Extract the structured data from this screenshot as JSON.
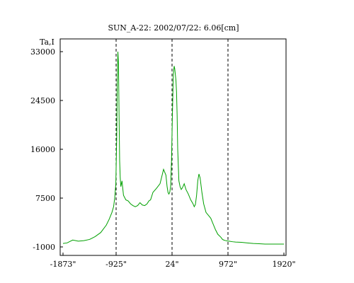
{
  "chart_data": {
    "type": "line",
    "title": "SUN_A-22: 2002/07/22: 6.06[cm]",
    "ylabel": "Ta,I",
    "xlabel": "",
    "xlim": [
      -1873,
      1920
    ],
    "ylim": [
      -1000,
      36000
    ],
    "x_ticks": [
      {
        "value": -1873,
        "label": "-1873\""
      },
      {
        "value": -925,
        "label": "-925\""
      },
      {
        "value": 24,
        "label": "24\""
      },
      {
        "value": 972,
        "label": "972\""
      },
      {
        "value": 1920,
        "label": "1920\""
      }
    ],
    "y_ticks": [
      {
        "value": -1000,
        "label": "-1000"
      },
      {
        "value": 7500,
        "label": "7500"
      },
      {
        "value": 16000,
        "label": "16000"
      },
      {
        "value": 24500,
        "label": "24500"
      },
      {
        "value": 33000,
        "label": "33000"
      }
    ],
    "vertical_dashed_lines_x": [
      -925,
      24,
      972
    ],
    "grid": false,
    "series": [
      {
        "color": "#00a000",
        "x": [
          -1873,
          -1800,
          -1700,
          -1600,
          -1500,
          -1400,
          -1300,
          -1200,
          -1100,
          -1050,
          -1000,
          -970,
          -950,
          -930,
          -915,
          -905,
          -895,
          -885,
          -875,
          -865,
          -855,
          -845,
          -835,
          -825,
          -800,
          -760,
          -720,
          -680,
          -640,
          -600,
          -560,
          -520,
          -480,
          -440,
          -400,
          -370,
          -340,
          -300,
          -240,
          -180,
          -120,
          -80,
          -60,
          -45,
          -30,
          -15,
          0,
          15,
          30,
          45,
          60,
          70,
          80,
          90,
          100,
          110,
          120,
          140,
          160,
          180,
          200,
          230,
          260,
          300,
          340,
          380,
          400,
          420,
          440,
          460,
          480,
          500,
          530,
          560,
          600,
          640,
          680,
          720,
          760,
          800,
          850,
          880,
          900,
          930,
          960,
          990,
          1050,
          1100,
          1200,
          1300,
          1400,
          1500,
          1600,
          1700,
          1800,
          1920
        ],
        "y": [
          -400,
          -300,
          200,
          0,
          100,
          300,
          800,
          1500,
          2800,
          3800,
          5000,
          6000,
          7500,
          10000,
          18000,
          28000,
          33000,
          31000,
          22000,
          14000,
          11000,
          9500,
          10000,
          10500,
          8000,
          7200,
          7000,
          6500,
          6200,
          6000,
          6200,
          6700,
          6300,
          6200,
          6500,
          7000,
          7200,
          8500,
          9200,
          10000,
          12500,
          11500,
          9500,
          8500,
          8200,
          8500,
          9500,
          14000,
          22000,
          29000,
          30500,
          30000,
          29000,
          28000,
          26000,
          22000,
          16000,
          10500,
          9500,
          9000,
          9300,
          10000,
          9000,
          8200,
          7200,
          6500,
          6000,
          6400,
          8000,
          10500,
          11700,
          11000,
          8500,
          6500,
          5000,
          4500,
          4000,
          3000,
          2000,
          1200,
          700,
          300,
          200,
          100,
          50,
          0,
          -100,
          -150,
          -200,
          -300,
          -400,
          -450,
          -500,
          -500,
          -500,
          -500
        ]
      }
    ]
  }
}
